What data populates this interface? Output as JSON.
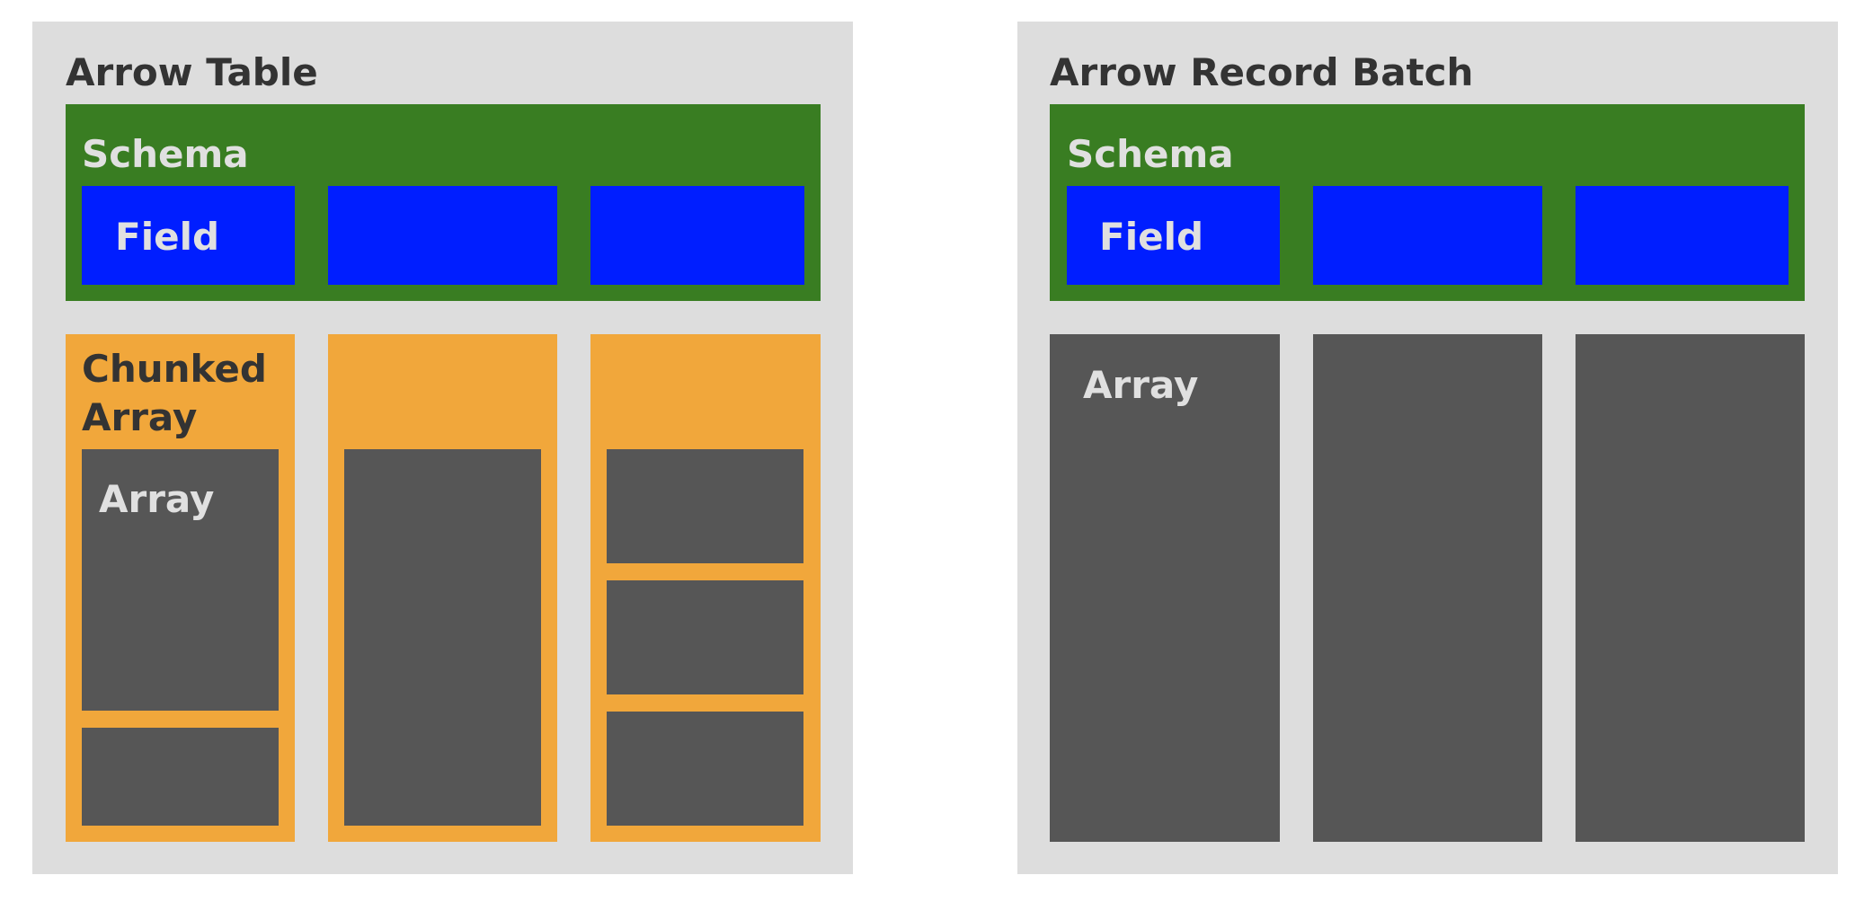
{
  "table": {
    "title": "Arrow Table",
    "schema_label": "Schema",
    "field_label": "Field",
    "chunked_array_label": "Chunked Array",
    "array_label": "Array"
  },
  "record_batch": {
    "title": "Arrow Record Batch",
    "schema_label": "Schema",
    "field_label": "Field",
    "array_label": "Array"
  },
  "colors": {
    "panel": "#dddddd",
    "schema": "#397d22",
    "field": "#001eff",
    "chunked_array": "#f1a73b",
    "array": "#565656"
  }
}
